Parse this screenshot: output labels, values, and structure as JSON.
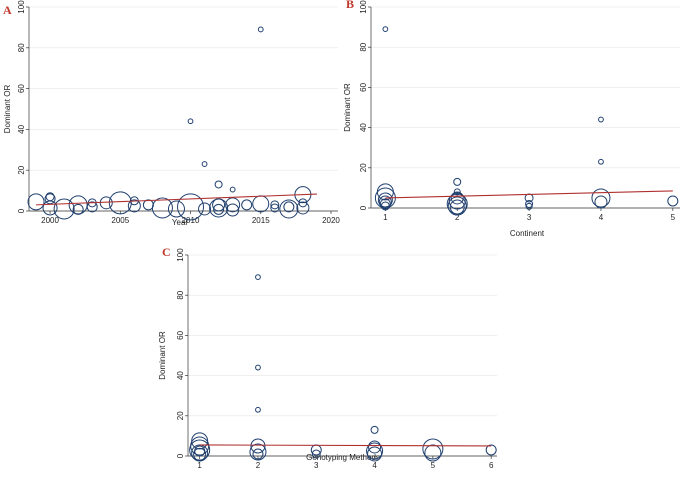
{
  "chart_data": [
    {
      "panel": "A",
      "type": "scatter",
      "xlabel": "Year",
      "ylabel": "Dominant OR",
      "xlim": [
        1998.5,
        2020.5
      ],
      "ylim": [
        0,
        100
      ],
      "xticks": [
        2000,
        2005,
        2010,
        2015,
        2020
      ],
      "yticks": [
        0,
        20,
        40,
        60,
        80,
        100
      ],
      "grid": true,
      "fit_line": {
        "x": [
          1999,
          2019
        ],
        "y": [
          3.0,
          8.3
        ]
      },
      "points": [
        {
          "x": 1999,
          "y": 4.5,
          "size": 8
        },
        {
          "x": 2000,
          "y": 6.0,
          "size": 5
        },
        {
          "x": 2000,
          "y": 7.0,
          "size": 4
        },
        {
          "x": 2000,
          "y": 1.5,
          "size": 7
        },
        {
          "x": 2001,
          "y": 1.0,
          "size": 10
        },
        {
          "x": 2002,
          "y": 3.0,
          "size": 9
        },
        {
          "x": 2002,
          "y": 0.8,
          "size": 5
        },
        {
          "x": 2003,
          "y": 2.0,
          "size": 5
        },
        {
          "x": 2003,
          "y": 4.0,
          "size": 4
        },
        {
          "x": 2004,
          "y": 4.0,
          "size": 6
        },
        {
          "x": 2005,
          "y": 4.0,
          "size": 11
        },
        {
          "x": 2006,
          "y": 2.5,
          "size": 6
        },
        {
          "x": 2006,
          "y": 5.0,
          "size": 4
        },
        {
          "x": 2007,
          "y": 3.0,
          "size": 5
        },
        {
          "x": 2008,
          "y": 1.5,
          "size": 10
        },
        {
          "x": 2009,
          "y": 1.0,
          "size": 8
        },
        {
          "x": 2010,
          "y": 44.0,
          "size": 2.4
        },
        {
          "x": 2010,
          "y": 2.0,
          "size": 13
        },
        {
          "x": 2011,
          "y": 23.0,
          "size": 2.4
        },
        {
          "x": 2011,
          "y": 1.0,
          "size": 6
        },
        {
          "x": 2012,
          "y": 13.0,
          "size": 3.5
        },
        {
          "x": 2012,
          "y": 3.0,
          "size": 6
        },
        {
          "x": 2012,
          "y": 1.5,
          "size": 9
        },
        {
          "x": 2012,
          "y": 0.8,
          "size": 5
        },
        {
          "x": 2013,
          "y": 10.5,
          "size": 2.4
        },
        {
          "x": 2013,
          "y": 3.0,
          "size": 7
        },
        {
          "x": 2013,
          "y": 0.5,
          "size": 6
        },
        {
          "x": 2014,
          "y": 3.0,
          "size": 5
        },
        {
          "x": 2015,
          "y": 89.0,
          "size": 2.4
        },
        {
          "x": 2015,
          "y": 3.5,
          "size": 8
        },
        {
          "x": 2016,
          "y": 3.0,
          "size": 4
        },
        {
          "x": 2016,
          "y": 1.5,
          "size": 4
        },
        {
          "x": 2017,
          "y": 1.0,
          "size": 9
        },
        {
          "x": 2017,
          "y": 2.0,
          "size": 5
        },
        {
          "x": 2018,
          "y": 8.0,
          "size": 8
        },
        {
          "x": 2018,
          "y": 1.5,
          "size": 6
        },
        {
          "x": 2018,
          "y": 4.0,
          "size": 4
        }
      ]
    },
    {
      "panel": "B",
      "type": "scatter",
      "xlabel": "Continent",
      "ylabel": "Dominant OR",
      "xlim": [
        0.8,
        5.1
      ],
      "ylim": [
        0,
        100
      ],
      "xticks": [
        1,
        2,
        3,
        4,
        5
      ],
      "yticks": [
        0,
        20,
        40,
        60,
        80,
        100
      ],
      "grid": true,
      "fit_line": {
        "x": [
          1,
          5
        ],
        "y": [
          5.0,
          8.5
        ]
      },
      "points": [
        {
          "x": 1,
          "y": 89.0,
          "size": 2.4
        },
        {
          "x": 1,
          "y": 8.0,
          "size": 8
        },
        {
          "x": 1,
          "y": 5.0,
          "size": 10
        },
        {
          "x": 1,
          "y": 4.0,
          "size": 7
        },
        {
          "x": 1,
          "y": 3.0,
          "size": 6
        },
        {
          "x": 1,
          "y": 2.0,
          "size": 5
        },
        {
          "x": 1,
          "y": 1.0,
          "size": 4
        },
        {
          "x": 2,
          "y": 13.0,
          "size": 3.5
        },
        {
          "x": 2,
          "y": 8.0,
          "size": 3
        },
        {
          "x": 2,
          "y": 5.0,
          "size": 6
        },
        {
          "x": 2,
          "y": 3.5,
          "size": 8
        },
        {
          "x": 2,
          "y": 2.0,
          "size": 10
        },
        {
          "x": 2,
          "y": 1.0,
          "size": 9
        },
        {
          "x": 2,
          "y": 0.5,
          "size": 7
        },
        {
          "x": 3,
          "y": 5.0,
          "size": 4
        },
        {
          "x": 3,
          "y": 2.0,
          "size": 3.5
        },
        {
          "x": 3,
          "y": 0.8,
          "size": 3
        },
        {
          "x": 4,
          "y": 44.0,
          "size": 2.4
        },
        {
          "x": 4,
          "y": 23.0,
          "size": 2.4
        },
        {
          "x": 4,
          "y": 5.0,
          "size": 9
        },
        {
          "x": 4,
          "y": 3.0,
          "size": 6
        },
        {
          "x": 5,
          "y": 3.5,
          "size": 5
        }
      ]
    },
    {
      "panel": "C",
      "type": "scatter",
      "xlabel": "Genotyping Methods",
      "ylabel": "Dominant OR",
      "xlim": [
        0.8,
        6.1
      ],
      "ylim": [
        0,
        100
      ],
      "xticks": [
        1,
        2,
        3,
        4,
        5,
        6
      ],
      "yticks": [
        0,
        20,
        40,
        60,
        80,
        100
      ],
      "grid": true,
      "fit_line": {
        "x": [
          1,
          6
        ],
        "y": [
          5.5,
          5.0
        ]
      },
      "points": [
        {
          "x": 1,
          "y": 7.5,
          "size": 8
        },
        {
          "x": 1,
          "y": 5.0,
          "size": 9
        },
        {
          "x": 1,
          "y": 3.0,
          "size": 10
        },
        {
          "x": 1,
          "y": 1.5,
          "size": 8
        },
        {
          "x": 1,
          "y": 0.8,
          "size": 6
        },
        {
          "x": 1,
          "y": 2.5,
          "size": 5
        },
        {
          "x": 2,
          "y": 89.0,
          "size": 2.4
        },
        {
          "x": 2,
          "y": 44.0,
          "size": 2.4
        },
        {
          "x": 2,
          "y": 23.0,
          "size": 2.4
        },
        {
          "x": 2,
          "y": 5.0,
          "size": 7
        },
        {
          "x": 2,
          "y": 2.0,
          "size": 8
        },
        {
          "x": 2,
          "y": 1.0,
          "size": 5
        },
        {
          "x": 3,
          "y": 3.0,
          "size": 5
        },
        {
          "x": 3,
          "y": 1.0,
          "size": 4
        },
        {
          "x": 4,
          "y": 13.0,
          "size": 3.5
        },
        {
          "x": 4,
          "y": 4.5,
          "size": 6
        },
        {
          "x": 4,
          "y": 2.5,
          "size": 8
        },
        {
          "x": 4,
          "y": 1.0,
          "size": 7
        },
        {
          "x": 5,
          "y": 3.5,
          "size": 10
        },
        {
          "x": 5,
          "y": 1.5,
          "size": 8
        },
        {
          "x": 6,
          "y": 3.0,
          "size": 5
        }
      ]
    }
  ]
}
